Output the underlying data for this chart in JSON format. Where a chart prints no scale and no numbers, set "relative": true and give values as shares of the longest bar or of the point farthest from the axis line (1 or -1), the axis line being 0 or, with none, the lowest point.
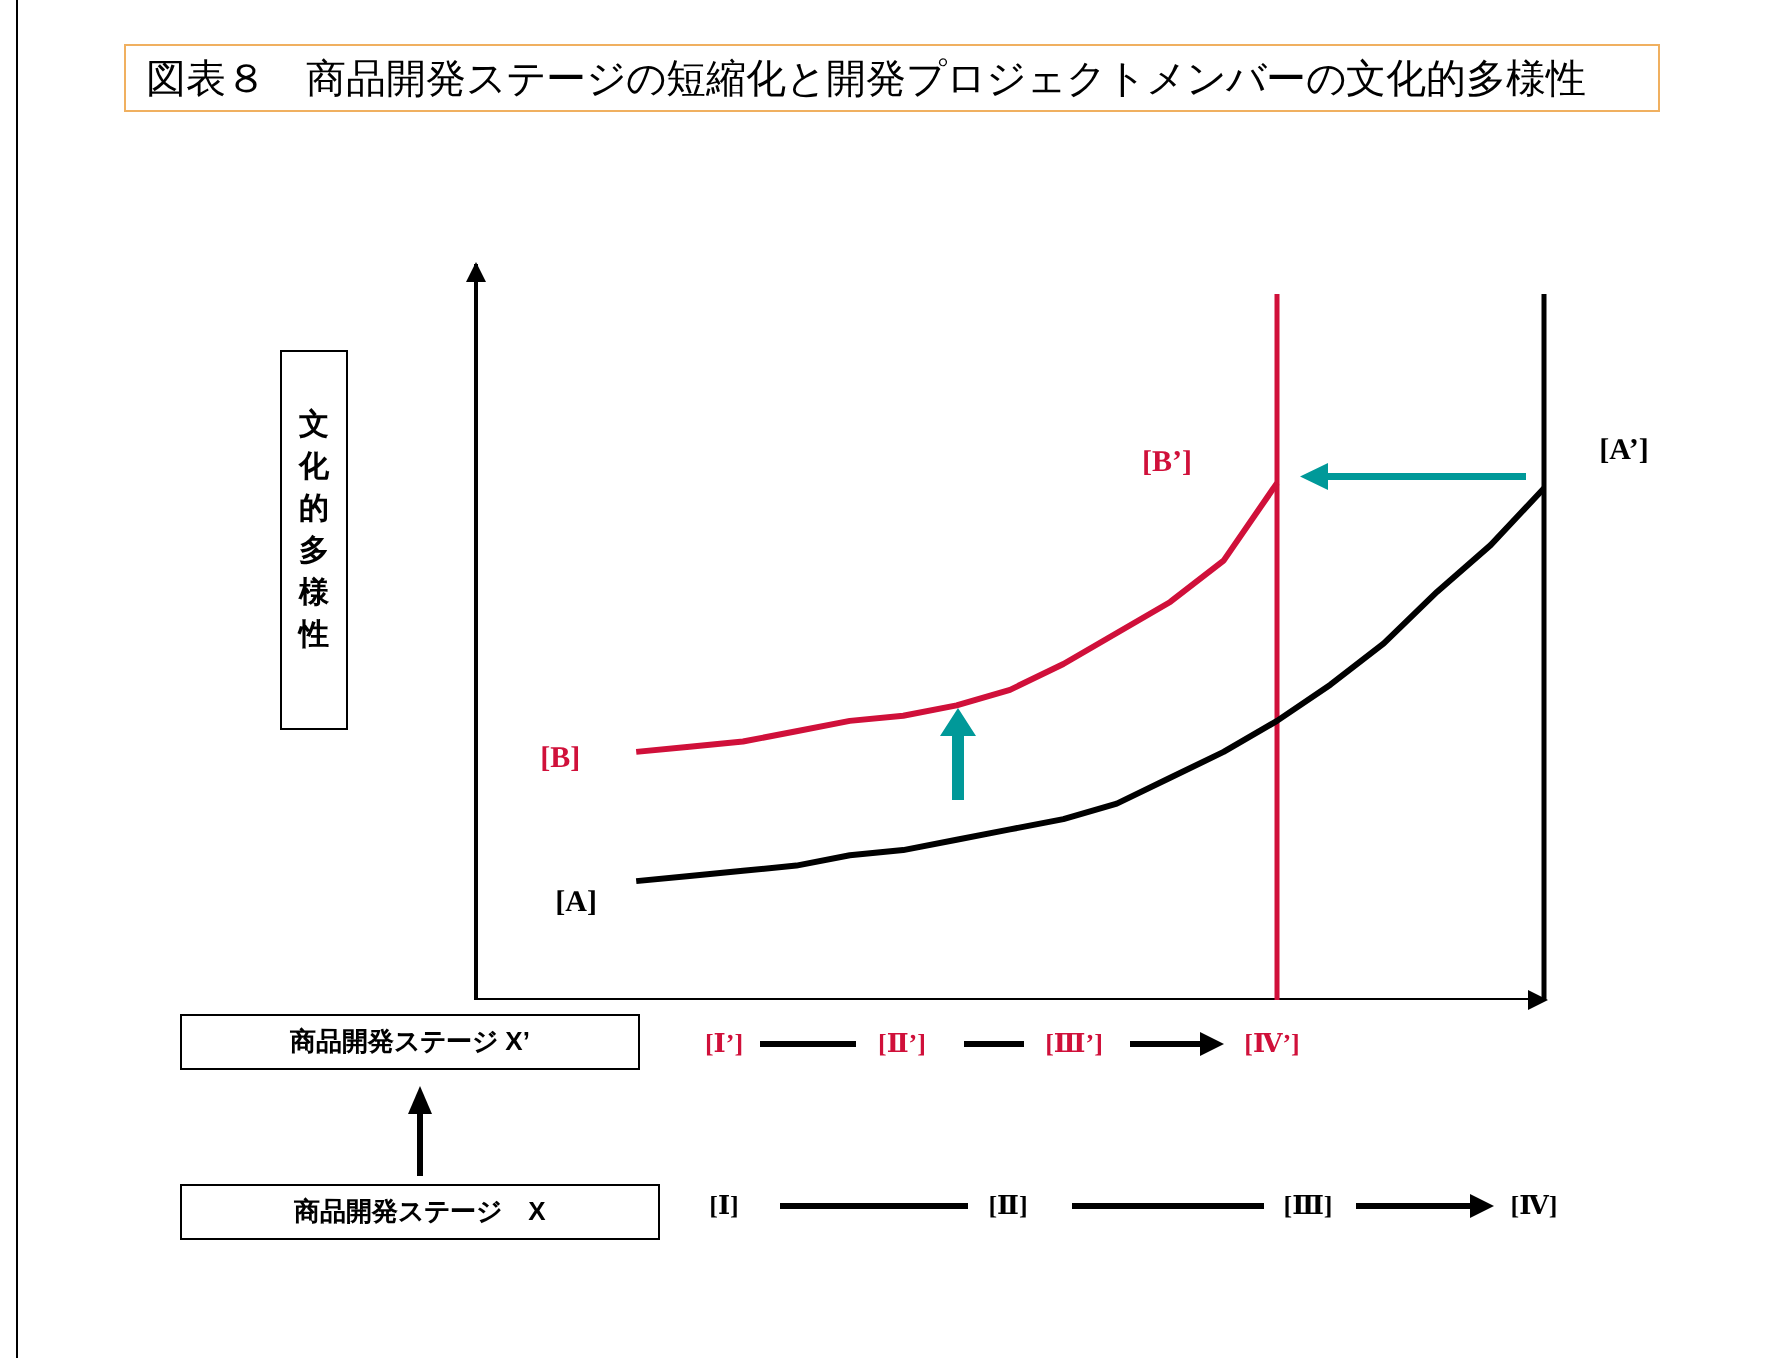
{
  "chart_data": {
    "type": "line",
    "title": "図表８　商品開発ステージの短縮化と開発プロジェクトメンバーの文化的多様性",
    "ylabel": "文化的多様性",
    "relative": true,
    "legend": false,
    "marker": "none",
    "line_style": "solid",
    "categories": [
      null,
      null,
      null,
      null,
      null,
      null,
      null,
      null,
      null,
      null,
      null,
      null,
      null,
      null,
      null,
      null,
      null,
      null,
      null,
      null,
      null
    ],
    "series": [
      {
        "color": "#000000",
        "values": [
          null,
          null,
          null,
          0.23,
          0.24,
          0.25,
          0.26,
          0.28,
          0.29,
          0.31,
          0.33,
          0.35,
          0.38,
          0.43,
          0.48,
          0.54,
          0.61,
          0.69,
          0.79,
          0.88,
          0.99
        ]
      },
      {
        "color": "#d0103a",
        "values": [
          null,
          null,
          null,
          0.48,
          0.49,
          0.5,
          0.52,
          0.54,
          0.55,
          0.57,
          0.6,
          0.65,
          0.71,
          0.77,
          0.85,
          1.0,
          null,
          null,
          null,
          null,
          null
        ]
      }
    ],
    "annotations": [
      "[A]",
      "[B]",
      "[B’]",
      "[A’]",
      "商品開発ステージ X’",
      "[Ⅰ’]",
      "[Ⅱ’]",
      "[Ⅲ’]",
      "[Ⅳ’]",
      "商品開発ステージ　X",
      "[Ⅰ]",
      "[Ⅱ]",
      "[Ⅲ]",
      "[Ⅳ]"
    ]
  }
}
